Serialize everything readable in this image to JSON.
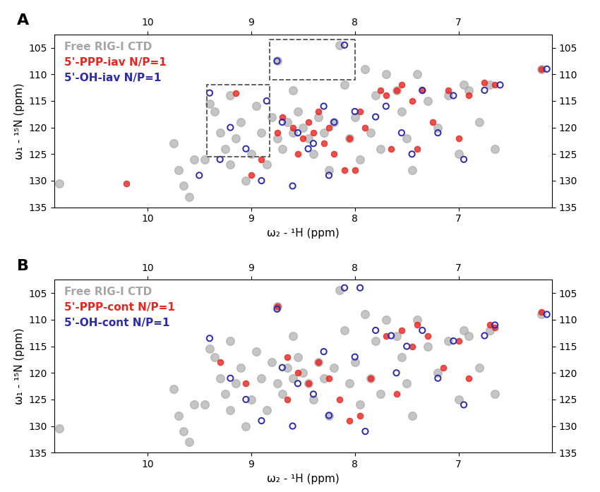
{
  "chart_data": [
    {
      "type": "scatter",
      "panel_label": "A",
      "x_label": "ω₂ - ¹H (ppm)",
      "y_label": "ω₁ - ¹⁵N (ppm)",
      "xlim": [
        10.9,
        6.1
      ],
      "ylim": [
        135,
        102.5
      ],
      "xticks": [
        7,
        8,
        9,
        10
      ],
      "yticks": [
        105,
        110,
        115,
        120,
        125,
        130,
        135
      ],
      "boxes": [
        [
          8.82,
          8.0,
          103.5,
          111
        ],
        [
          9.43,
          8.82,
          112,
          125.5
        ]
      ],
      "series": [
        {
          "name": "Free RIG-I CTD",
          "color": "#a6a6a6",
          "marker": "o",
          "x": [
            10.85,
            9.75,
            9.7,
            9.65,
            9.6,
            9.55,
            9.45,
            9.4,
            9.35,
            9.3,
            9.25,
            9.2,
            9.15,
            9.1,
            9.05,
            9.0,
            8.95,
            8.9,
            8.85,
            8.8,
            8.75,
            8.7,
            8.65,
            8.6,
            8.55,
            8.5,
            8.45,
            8.4,
            8.35,
            8.3,
            8.25,
            8.2,
            8.15,
            8.1,
            8.05,
            8.0,
            7.95,
            7.9,
            7.85,
            7.8,
            7.75,
            7.7,
            7.6,
            7.55,
            7.5,
            7.45,
            7.4,
            7.3,
            7.2,
            7.1,
            7.0,
            6.95,
            6.9,
            6.8,
            6.7,
            6.65,
            6.2,
            8.75,
            8.6,
            9.2
          ],
          "values": [
            130.5,
            123,
            128,
            131,
            133,
            126,
            126,
            115.5,
            117,
            121,
            124,
            127,
            122,
            119,
            130,
            125,
            116,
            121,
            127,
            118,
            122,
            124,
            119,
            121,
            117,
            120,
            122,
            125,
            118,
            121,
            128,
            119,
            104.5,
            112,
            122,
            118,
            126,
            109,
            121,
            114,
            124,
            110,
            113,
            117,
            122,
            128,
            110,
            115,
            120,
            114,
            125,
            112,
            113,
            119,
            112,
            124,
            109,
            107.5,
            113,
            114
          ]
        },
        {
          "name": "5'-PPP-iav N/P=1",
          "color": "#e8251f",
          "marker": "o",
          "x": [
            10.2,
            9.15,
            9.0,
            8.7,
            8.6,
            8.5,
            8.45,
            8.4,
            8.35,
            8.3,
            8.25,
            8.2,
            8.1,
            8.05,
            7.95,
            7.9,
            7.75,
            7.7,
            7.6,
            7.55,
            7.45,
            7.35,
            7.25,
            7.1,
            7.0,
            6.9,
            6.75,
            6.65,
            7.4,
            7.65,
            8.0,
            8.55,
            8.75,
            8.9,
            6.2
          ],
          "values": [
            130.5,
            113.5,
            129,
            118,
            120,
            122,
            119,
            121,
            117,
            123,
            120,
            125,
            128,
            122,
            117,
            120,
            113,
            114,
            113,
            112,
            115,
            113,
            119,
            113,
            122,
            114,
            111.5,
            112,
            124,
            124,
            128,
            125,
            121,
            126,
            109
          ]
        },
        {
          "name": "5'-OH-iav N/P=1",
          "color": "#2b2bb0",
          "marker": "o",
          "x": [
            9.4,
            9.2,
            9.05,
            8.9,
            9.3,
            8.75,
            8.1,
            8.7,
            8.55,
            8.45,
            8.3,
            8.2,
            8.0,
            7.8,
            7.7,
            7.55,
            7.45,
            7.35,
            7.2,
            7.05,
            6.95,
            6.75,
            6.6,
            8.6,
            8.25,
            6.15,
            8.85,
            8.4,
            9.5
          ],
          "values": [
            113.5,
            120,
            124,
            130,
            126,
            107.5,
            104.5,
            119,
            121,
            124,
            116,
            119,
            117,
            118,
            116,
            121,
            125,
            113,
            121,
            114,
            126,
            113,
            112,
            131,
            129,
            109,
            115,
            123,
            129
          ]
        }
      ]
    },
    {
      "type": "scatter",
      "panel_label": "B",
      "x_label": "ω₂ - ¹H (ppm)",
      "y_label": "ω₁ - ¹⁵N (ppm)",
      "xlim": [
        10.9,
        6.1
      ],
      "ylim": [
        135,
        102.5
      ],
      "xticks": [
        7,
        8,
        9,
        10
      ],
      "yticks": [
        105,
        110,
        115,
        120,
        125,
        130,
        135
      ],
      "boxes": [],
      "series": [
        {
          "name": "Free RIG-I CTD",
          "color": "#a6a6a6",
          "marker": "o",
          "x": [
            10.85,
            9.75,
            9.7,
            9.65,
            9.6,
            9.55,
            9.45,
            9.4,
            9.35,
            9.3,
            9.25,
            9.2,
            9.15,
            9.1,
            9.05,
            9.0,
            8.95,
            8.9,
            8.85,
            8.8,
            8.75,
            8.7,
            8.65,
            8.6,
            8.55,
            8.5,
            8.45,
            8.4,
            8.35,
            8.3,
            8.25,
            8.2,
            8.15,
            8.1,
            8.05,
            8.0,
            7.95,
            7.9,
            7.85,
            7.8,
            7.75,
            7.7,
            7.6,
            7.55,
            7.5,
            7.45,
            7.4,
            7.3,
            7.2,
            7.1,
            7.0,
            6.95,
            6.9,
            6.8,
            6.7,
            6.65,
            6.2,
            8.75,
            8.6,
            9.2
          ],
          "values": [
            130.5,
            123,
            128,
            131,
            133,
            126,
            126,
            115.5,
            117,
            121,
            124,
            127,
            122,
            119,
            130,
            125,
            116,
            121,
            127,
            118,
            122,
            124,
            119,
            121,
            117,
            120,
            122,
            125,
            118,
            121,
            128,
            119,
            104.5,
            112,
            122,
            118,
            126,
            109,
            121,
            114,
            124,
            110,
            113,
            117,
            122,
            128,
            110,
            115,
            120,
            114,
            125,
            112,
            113,
            119,
            112,
            124,
            109,
            107.5,
            113,
            114
          ]
        },
        {
          "name": "5'-PPP-cont N/P=1",
          "color": "#e8251f",
          "marker": "o",
          "x": [
            8.75,
            8.65,
            8.55,
            8.45,
            8.35,
            8.25,
            8.15,
            7.95,
            7.85,
            7.7,
            7.55,
            7.45,
            7.3,
            7.15,
            7.0,
            6.9,
            6.7,
            6.65,
            7.6,
            8.05,
            8.65,
            9.05,
            9.3,
            6.2,
            7.4
          ],
          "values": [
            107.5,
            117,
            120,
            122,
            118,
            121,
            125,
            128,
            121,
            113,
            112,
            115,
            113,
            119,
            114,
            121,
            111,
            111.5,
            124,
            129,
            125,
            122,
            118,
            108.5,
            111
          ]
        },
        {
          "name": "5'-OH-cont N/P=1",
          "color": "#2b2bb0",
          "marker": "o",
          "x": [
            9.4,
            9.2,
            9.05,
            8.9,
            8.7,
            8.55,
            8.4,
            8.3,
            8.1,
            7.95,
            8.0,
            7.8,
            7.65,
            7.5,
            7.35,
            7.2,
            7.05,
            6.95,
            6.75,
            6.65,
            8.6,
            8.25,
            7.9,
            6.15,
            8.75,
            7.6
          ],
          "values": [
            113.5,
            121,
            125,
            129,
            119,
            122,
            124,
            116,
            104,
            104,
            117,
            112,
            113,
            115,
            112,
            121,
            114,
            126,
            113,
            111,
            130,
            128,
            131,
            109,
            108,
            120
          ]
        }
      ]
    }
  ]
}
